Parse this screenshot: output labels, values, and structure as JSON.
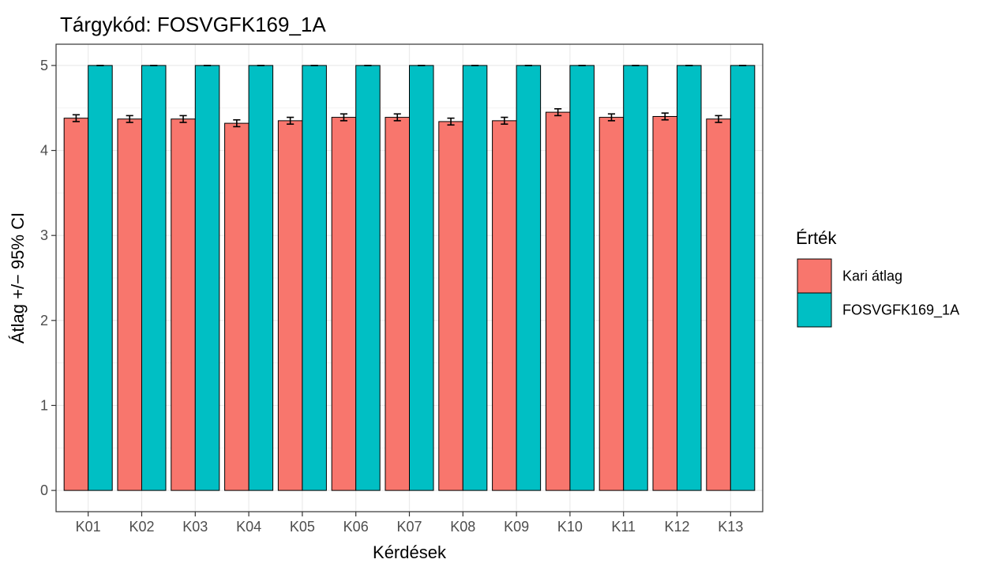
{
  "chart_data": {
    "type": "bar",
    "title": "Tárgykód:  FOSVGFK169_1A",
    "xlabel": "Kérdések",
    "ylabel": "Átlag +/− 95% CI",
    "categories": [
      "K01",
      "K02",
      "K03",
      "K04",
      "K05",
      "K06",
      "K07",
      "K08",
      "K09",
      "K10",
      "K11",
      "K12",
      "K13"
    ],
    "yticks": [
      "0",
      "1",
      "2",
      "3",
      "4",
      "5"
    ],
    "ylim": [
      -0.25,
      5.25
    ],
    "grid": true,
    "legend": {
      "title": "Érték",
      "placement": "right"
    },
    "series": [
      {
        "name": "Kari átlag",
        "color": "#F8766D",
        "values": [
          4.38,
          4.37,
          4.37,
          4.32,
          4.35,
          4.39,
          4.39,
          4.34,
          4.35,
          4.45,
          4.39,
          4.4,
          4.37
        ],
        "ci": [
          0.04,
          0.04,
          0.04,
          0.04,
          0.04,
          0.04,
          0.04,
          0.04,
          0.04,
          0.04,
          0.04,
          0.04,
          0.04
        ]
      },
      {
        "name": "FOSVGFK169_1A",
        "color": "#00BFC4",
        "values": [
          5,
          5,
          5,
          5,
          5,
          5,
          5,
          5,
          5,
          5,
          5,
          5,
          5
        ],
        "ci": [
          0,
          0,
          0,
          0,
          0,
          0,
          0,
          0,
          0,
          0,
          0,
          0,
          0
        ]
      }
    ]
  }
}
